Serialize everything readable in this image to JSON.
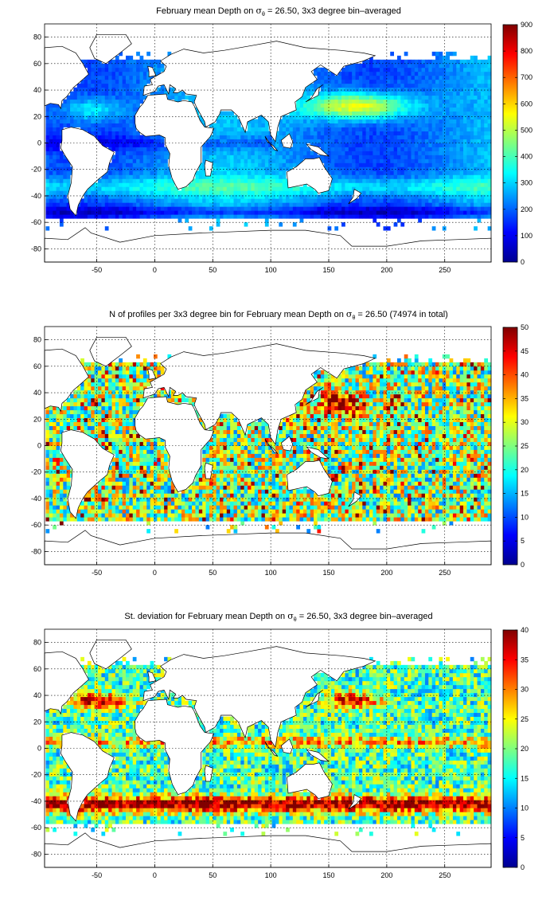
{
  "chart_data": [
    {
      "type": "heatmap",
      "title_pre": "February mean Depth on ",
      "title_sym": "σ",
      "title_sub": "θ",
      "title_post": " = 26.50, 3x3 degree bin–averaged",
      "xticks": [
        "-50",
        "0",
        "50",
        "100",
        "150",
        "200",
        "250"
      ],
      "yticks": [
        "80",
        "60",
        "40",
        "20",
        "0",
        "-20",
        "-40",
        "-60",
        "-80"
      ],
      "xlim": [
        -95,
        290
      ],
      "ylim": [
        -90,
        90
      ],
      "colorbar": {
        "min": 0,
        "max": 900,
        "ticks": [
          "900",
          "800",
          "700",
          "600",
          "500",
          "400",
          "300",
          "200",
          "100",
          "0"
        ]
      },
      "grid": true
    },
    {
      "type": "heatmap",
      "title_pre": "N of profiles per 3x3 degree bin for February mean Depth on ",
      "title_sym": "σ",
      "title_sub": "θ",
      "title_post": " = 26.50 (74974 in total)",
      "xticks": [
        "-50",
        "0",
        "50",
        "100",
        "150",
        "200",
        "250"
      ],
      "yticks": [
        "80",
        "60",
        "40",
        "20",
        "0",
        "-20",
        "-40",
        "-60",
        "-80"
      ],
      "xlim": [
        -95,
        290
      ],
      "ylim": [
        -90,
        90
      ],
      "colorbar": {
        "min": 0,
        "max": 50,
        "ticks": [
          "50",
          "45",
          "40",
          "35",
          "30",
          "25",
          "20",
          "15",
          "10",
          "5",
          "0"
        ]
      },
      "grid": true
    },
    {
      "type": "heatmap",
      "title_pre": "St. deviation for February mean Depth on ",
      "title_sym": "σ",
      "title_sub": "θ",
      "title_post": " = 26.50, 3x3 degree bin–averaged",
      "xticks": [
        "-50",
        "0",
        "50",
        "100",
        "150",
        "200",
        "250"
      ],
      "yticks": [
        "80",
        "60",
        "40",
        "20",
        "0",
        "-20",
        "-40",
        "-60",
        "-80"
      ],
      "xlim": [
        -95,
        290
      ],
      "ylim": [
        -90,
        90
      ],
      "colorbar": {
        "min": 0,
        "max": 40,
        "ticks": [
          "40",
          "35",
          "30",
          "25",
          "20",
          "15",
          "10",
          "5",
          "0"
        ]
      },
      "grid": true
    }
  ]
}
